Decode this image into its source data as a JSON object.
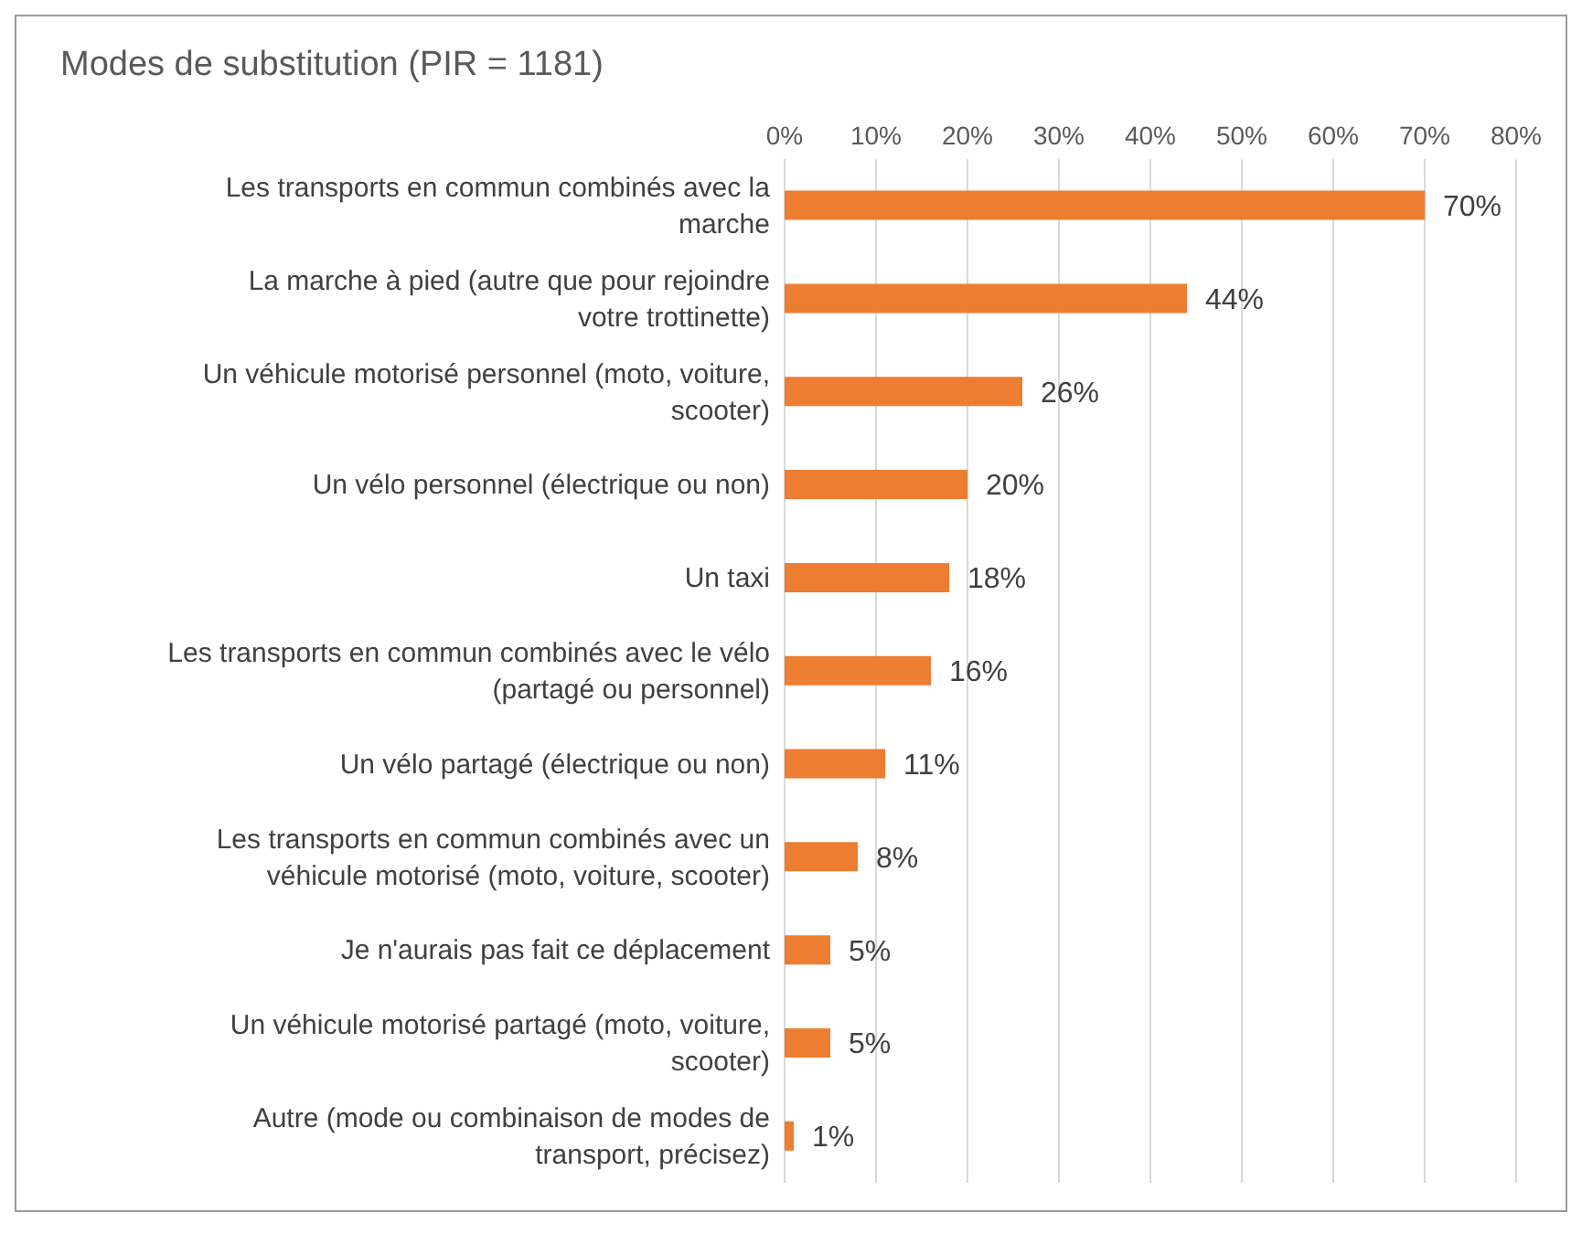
{
  "chart_data": {
    "type": "bar",
    "orientation": "horizontal",
    "title": "Modes de substitution (PIR = 1181)",
    "categories": [
      "Les transports en commun combinés avec la marche",
      "La marche à pied (autre que pour rejoindre votre trottinette)",
      "Un véhicule motorisé personnel (moto, voiture, scooter)",
      "Un vélo personnel (électrique ou non)",
      "Un taxi",
      "Les transports en commun combinés avec le vélo (partagé ou personnel)",
      "Un vélo partagé (électrique ou non)",
      "Les transports en commun combinés avec un véhicule motorisé (moto, voiture, scooter)",
      "Je n'aurais pas fait ce déplacement",
      "Un véhicule motorisé partagé (moto, voiture, scooter)",
      "Autre (mode ou combinaison de modes de transport, précisez)"
    ],
    "values": [
      70,
      44,
      26,
      20,
      18,
      16,
      11,
      8,
      5,
      5,
      1
    ],
    "value_labels": [
      "70%",
      "44%",
      "26%",
      "20%",
      "18%",
      "16%",
      "11%",
      "8%",
      "5%",
      "5%",
      "1%"
    ],
    "color": "#ed7d31",
    "xlim": [
      0,
      80
    ],
    "xticks": [
      {
        "value": 0,
        "label": "0%"
      },
      {
        "value": 10,
        "label": "10%"
      },
      {
        "value": 20,
        "label": "20%"
      },
      {
        "value": 30,
        "label": "30%"
      },
      {
        "value": 40,
        "label": "40%"
      },
      {
        "value": 50,
        "label": "50%"
      },
      {
        "value": 60,
        "label": "60%"
      },
      {
        "value": 70,
        "label": "70%"
      },
      {
        "value": 80,
        "label": "80%"
      }
    ],
    "grid": "x"
  }
}
